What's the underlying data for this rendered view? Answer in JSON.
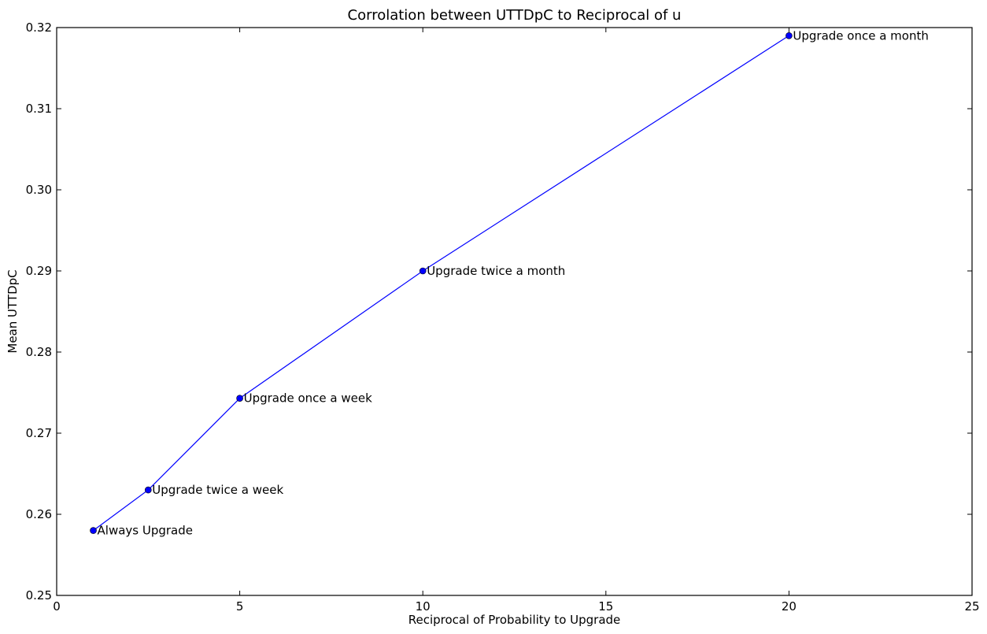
{
  "chart_data": {
    "type": "line",
    "title": "Corrolation between UTTDpC to Reciprocal of u",
    "xlabel": "Reciprocal of Probability to Upgrade",
    "ylabel": "Mean UTTDpC",
    "xlim": [
      0,
      25
    ],
    "ylim": [
      0.25,
      0.32
    ],
    "xticks": [
      0,
      5,
      10,
      15,
      20,
      25
    ],
    "xtick_labels": [
      "0",
      "5",
      "10",
      "15",
      "20",
      "25"
    ],
    "yticks": [
      0.25,
      0.26,
      0.27,
      0.28,
      0.29,
      0.3,
      0.31,
      0.32
    ],
    "ytick_labels": [
      "0.25",
      "0.26",
      "0.27",
      "0.28",
      "0.29",
      "0.30",
      "0.31",
      "0.32"
    ],
    "grid": false,
    "series": [
      {
        "color": "#0000ff",
        "marker": "circle",
        "x": [
          1,
          2.5,
          5,
          10,
          20
        ],
        "y": [
          0.258,
          0.263,
          0.2743,
          0.29,
          0.319
        ],
        "annotations": [
          "Always Upgrade",
          "Upgrade twice a week",
          "Upgrade once a week",
          "Upgrade twice a month",
          "Upgrade once a month"
        ]
      }
    ]
  }
}
